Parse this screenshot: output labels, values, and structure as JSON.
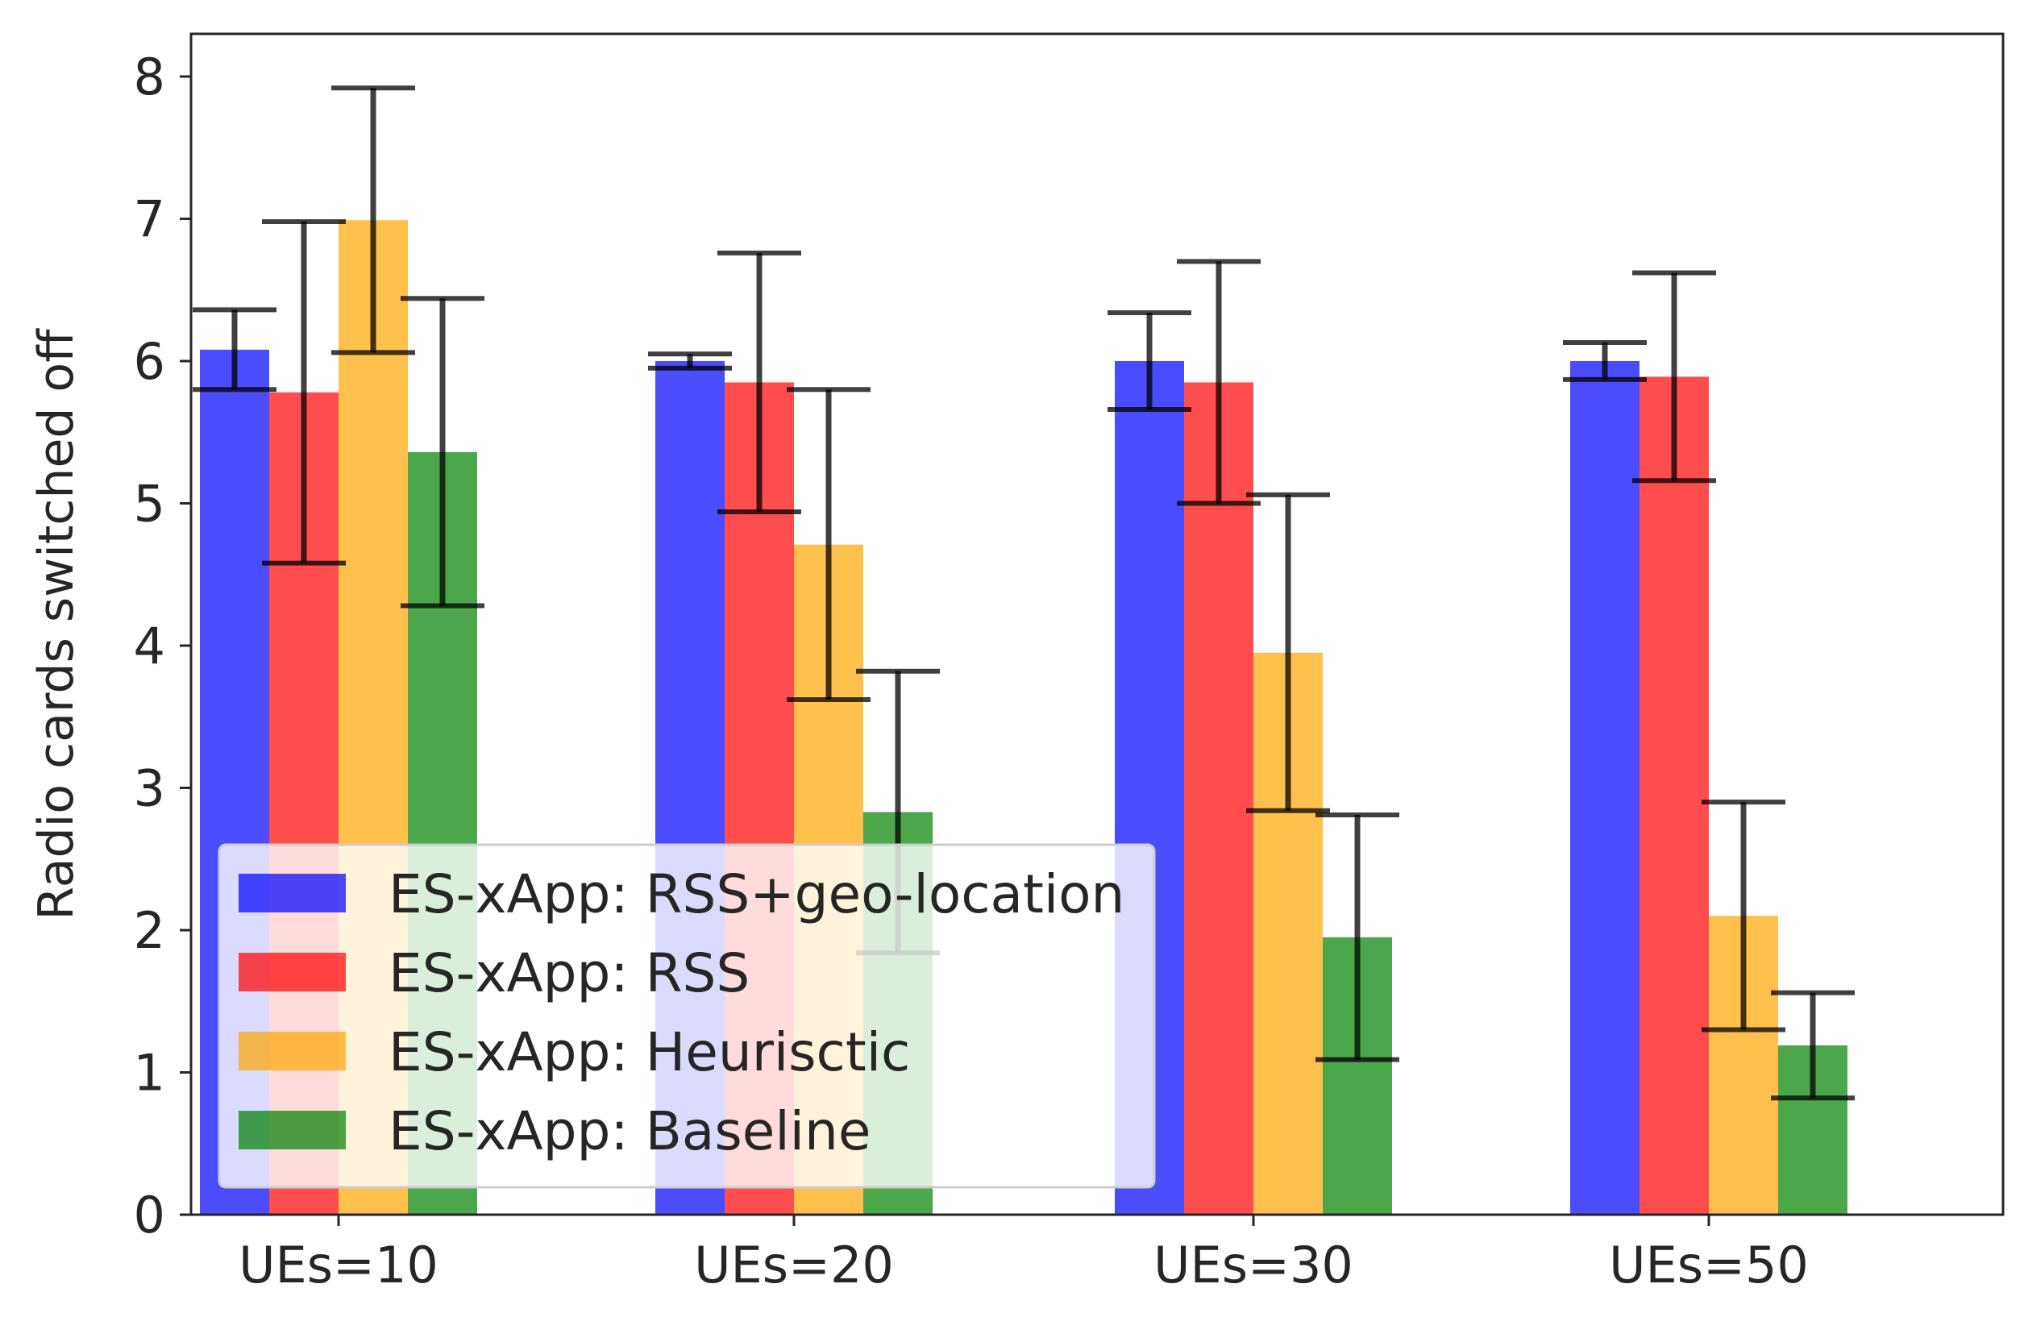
{
  "chart_data": {
    "type": "bar",
    "title": "",
    "xlabel": "",
    "ylabel": "Radio cards switched off",
    "ylim": [
      0,
      8.3
    ],
    "yticks": [
      0,
      1,
      2,
      3,
      4,
      5,
      6,
      7,
      8
    ],
    "categories": [
      "UEs=10",
      "UEs=20",
      "UEs=30",
      "UEs=50"
    ],
    "series": [
      {
        "name": "ES-xApp: RSS+geo-location",
        "color": "#0000ff",
        "values": [
          6.08,
          6.0,
          6.0,
          6.0
        ],
        "errors": [
          0.28,
          0.05,
          0.34,
          0.13
        ]
      },
      {
        "name": "ES-xApp: RSS",
        "color": "#ff0000",
        "values": [
          5.78,
          5.85,
          5.85,
          5.89
        ],
        "errors": [
          1.2,
          0.91,
          0.85,
          0.73
        ]
      },
      {
        "name": "ES-xApp: Heurisctic",
        "color": "#ffa500",
        "values": [
          6.99,
          4.71,
          3.95,
          2.1
        ],
        "errors": [
          0.93,
          1.09,
          1.11,
          0.8
        ]
      },
      {
        "name": "ES-xApp: Baseline",
        "color": "#008000",
        "values": [
          5.36,
          2.83,
          1.95,
          1.19
        ],
        "errors": [
          1.08,
          0.99,
          0.86,
          0.37
        ]
      }
    ],
    "legend_position": "lower-left",
    "grid": false
  }
}
